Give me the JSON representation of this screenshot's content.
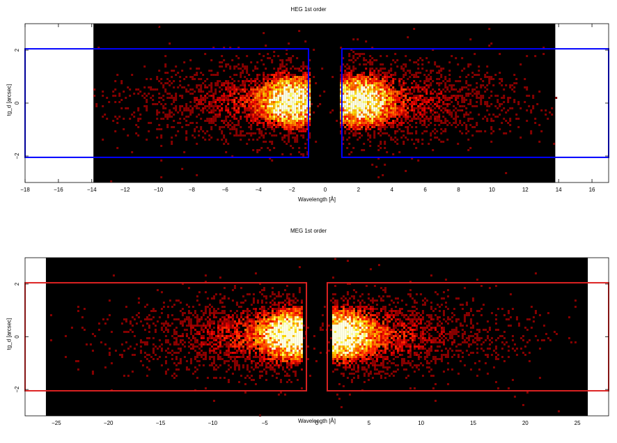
{
  "chart_data": [
    {
      "type": "heatmap",
      "title": "HEG 1st order",
      "xlabel": "Wavelength [Å]",
      "ylabel": "tg_d [arcsec]",
      "xlim": [
        -18,
        17
      ],
      "ylim": [
        -3,
        3
      ],
      "x_ticks": [
        -18,
        -16,
        -14,
        -12,
        -10,
        -8,
        -6,
        -4,
        -2,
        0,
        2,
        4,
        6,
        8,
        10,
        12,
        14,
        16
      ],
      "y_ticks": [
        -2,
        0,
        2
      ],
      "data_extent_x": [
        -13.9,
        13.8
      ],
      "series": [
        {
          "name": "",
          "peak_x": [
            -2.1,
            2.1
          ],
          "peak_y": 0.1
        }
      ],
      "regions": [
        {
          "x": [
            -18,
            -1.0
          ],
          "y": [
            -2.05,
            2.05
          ],
          "color": "#0000ff"
        },
        {
          "x": [
            1.0,
            17
          ],
          "y": [
            -2.05,
            2.05
          ],
          "color": "#0000ff"
        }
      ],
      "grid": false,
      "colormap": "heat"
    },
    {
      "type": "heatmap",
      "title": "MEG 1st order",
      "xlabel": "Wavelength [Å]",
      "ylabel": "tg_d [arcsec]",
      "xlim": [
        -28,
        28
      ],
      "ylim": [
        -3,
        3
      ],
      "x_ticks": [
        -25,
        -20,
        -15,
        -10,
        -5,
        0,
        5,
        10,
        15,
        20,
        25
      ],
      "y_ticks": [
        -2,
        0,
        2
      ],
      "data_extent_x": [
        -26.0,
        26.0
      ],
      "series": [
        {
          "name": "",
          "peak_x": [
            -2.7,
            2.5
          ],
          "peak_y": 0.1
        }
      ],
      "regions": [
        {
          "x": [
            -28,
            -1.0
          ],
          "y": [
            -2.05,
            2.05
          ],
          "color": "#dd2222"
        },
        {
          "x": [
            1.0,
            28
          ],
          "y": [
            -2.05,
            2.05
          ],
          "color": "#dd2222"
        }
      ],
      "grid": false,
      "colormap": "heat"
    }
  ]
}
